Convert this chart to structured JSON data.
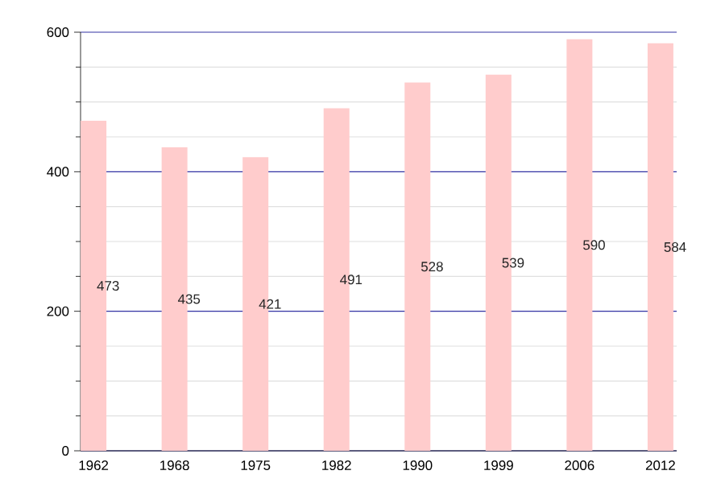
{
  "chart_data": {
    "type": "bar",
    "categories": [
      "1962",
      "1968",
      "1975",
      "1982",
      "1990",
      "1999",
      "2006",
      "2012"
    ],
    "values": [
      473,
      435,
      421,
      491,
      528,
      539,
      590,
      584
    ],
    "color": "#ffcccc",
    "ylim": [
      0,
      600
    ],
    "yticks": [
      0,
      {
        "value": 50,
        "label": null
      },
      {
        "value": 100,
        "label": null
      },
      {
        "value": 150,
        "label": null
      },
      200,
      {
        "value": 250,
        "label": null
      },
      {
        "value": 300,
        "label": null
      },
      {
        "value": 350,
        "label": null
      },
      400,
      {
        "value": 450,
        "label": null
      },
      {
        "value": 500,
        "label": null
      },
      {
        "value": 550,
        "label": null
      },
      600
    ],
    "grid": "y",
    "data_labels": true
  }
}
